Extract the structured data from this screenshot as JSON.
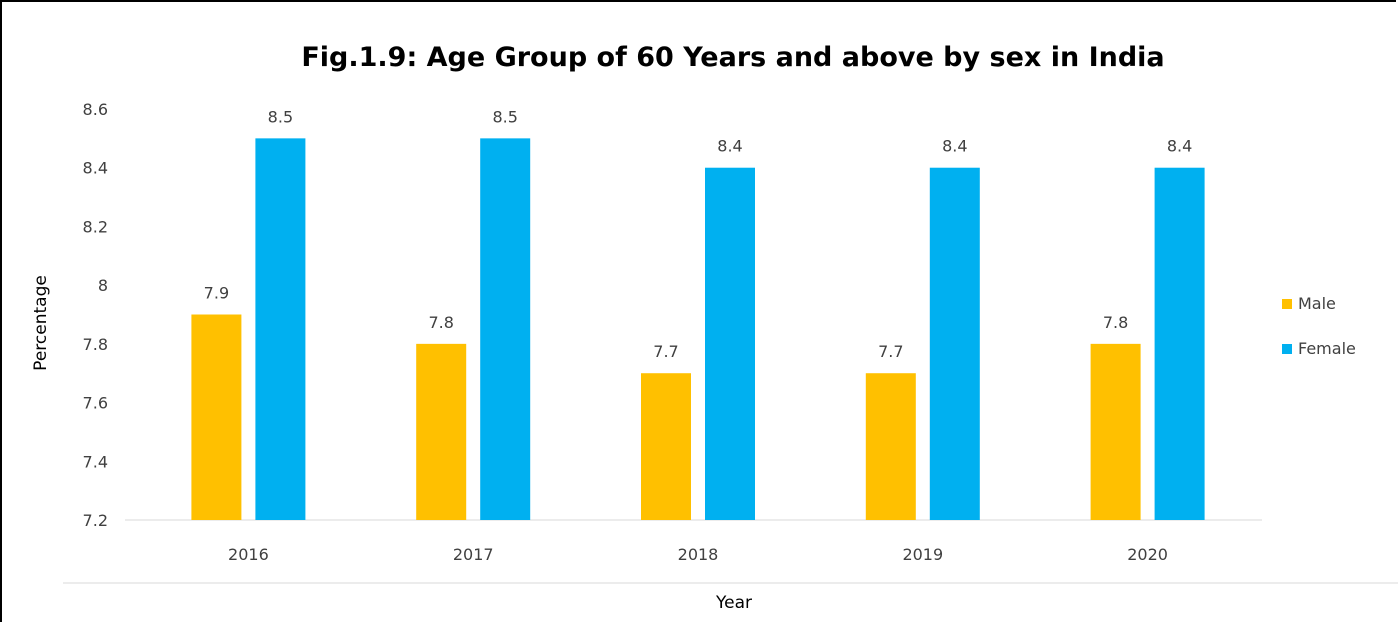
{
  "chart_data": {
    "type": "bar",
    "title": "Fig.1.9: Age Group of 60 Years and above by sex in India",
    "xlabel": "Year",
    "ylabel": "Percentage",
    "categories": [
      "2016",
      "2017",
      "2018",
      "2019",
      "2020"
    ],
    "series": [
      {
        "name": "Male",
        "values": [
          7.9,
          7.8,
          7.7,
          7.7,
          7.8
        ],
        "color": "#FFC000"
      },
      {
        "name": "Female",
        "values": [
          8.5,
          8.5,
          8.4,
          8.4,
          8.4
        ],
        "color": "#00B0F0"
      }
    ],
    "data_labels": [
      [
        "7.9",
        "7.8",
        "7.7",
        "7.7",
        "7.8"
      ],
      [
        "8.5",
        "8.5",
        "8.4",
        "8.4",
        "8.4"
      ]
    ],
    "ylim": [
      7.2,
      8.6
    ],
    "y_ticks": [
      "7.2",
      "7.4",
      "7.6",
      "7.8",
      "8",
      "8.2",
      "8.4",
      "8.6"
    ],
    "grid": false,
    "legend_position": "right"
  }
}
